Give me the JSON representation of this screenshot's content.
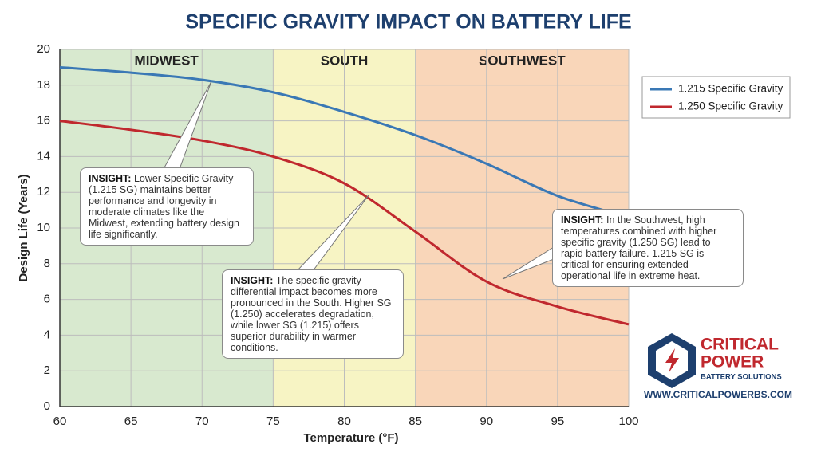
{
  "chart_data": {
    "type": "line",
    "title": "SPECIFIC GRAVITY IMPACT ON BATTERY LIFE",
    "x_label": "Temperature (°F)",
    "y_label": "Design Life (Years)",
    "x": [
      60,
      65,
      70,
      75,
      80,
      85,
      90,
      95,
      100
    ],
    "series": [
      {
        "name": "1.215 Specific Gravity",
        "color": "#3a78b5",
        "values": [
          19,
          18.7,
          18.3,
          17.6,
          16.5,
          15.2,
          13.6,
          11.8,
          10.6
        ]
      },
      {
        "name": "1.250 Specific Gravity",
        "color": "#c0282e",
        "values": [
          16,
          15.5,
          14.9,
          14,
          12.5,
          9.8,
          7,
          5.6,
          4.6
        ]
      }
    ],
    "xlim": [
      60,
      100
    ],
    "xticks": [
      60,
      65,
      70,
      75,
      80,
      85,
      90,
      95,
      100
    ],
    "ylim": [
      0,
      20
    ],
    "yticks": [
      0,
      2,
      4,
      6,
      8,
      10,
      12,
      14,
      16,
      18,
      20
    ],
    "grid": true,
    "zones": [
      {
        "name": "MIDWEST",
        "start": 60,
        "end": 75,
        "color": "#d8e9cf"
      },
      {
        "name": "SOUTH",
        "start": 75,
        "end": 85,
        "color": "#f7f4c4"
      },
      {
        "name": "SOUTHWEST",
        "start": 85,
        "end": 100,
        "color": "#f9d6b9"
      }
    ],
    "insights": [
      {
        "label": "INSIGHT:",
        "text": "Lower Specific Gravity (1.215 SG) maintains better performance and longevity in moderate climates like the Midwest, extending battery design life significantly."
      },
      {
        "label": "INSIGHT:",
        "text": "The specific gravity differential impact becomes more pronounced in the South. Higher SG (1.250) accelerates degradation, while lower SG (1.215) offers superior durability in warmer conditions."
      },
      {
        "label": "INSIGHT:",
        "text": "In the Southwest, high temperatures combined with higher specific gravity (1.250 SG) lead to rapid battery failure. 1.215 SG is critical for ensuring extended operational life in extreme heat."
      }
    ]
  },
  "logo": {
    "line1": "CRITICAL",
    "line2": "POWER",
    "line3": "BATTERY SOLUTIONS",
    "url": "WWW.CRITICALPOWERBS.COM"
  }
}
